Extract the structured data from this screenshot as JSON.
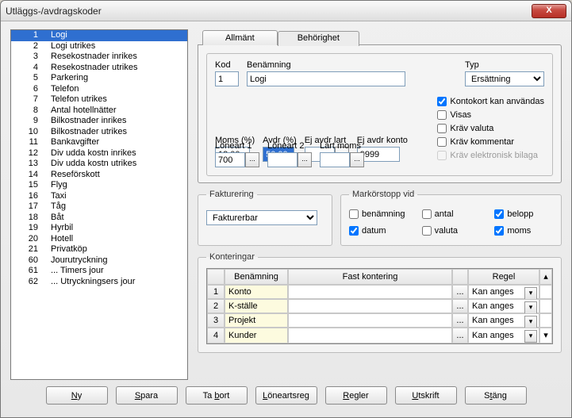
{
  "window": {
    "title": "Utläggs-/avdragskoder"
  },
  "list": {
    "selected": 0,
    "items": [
      {
        "n": "1",
        "t": "Logi"
      },
      {
        "n": "2",
        "t": "Logi utrikes"
      },
      {
        "n": "3",
        "t": "Resekostnader inrikes"
      },
      {
        "n": "4",
        "t": "Resekostnader utrikes"
      },
      {
        "n": "5",
        "t": "Parkering"
      },
      {
        "n": "6",
        "t": "Telefon"
      },
      {
        "n": "7",
        "t": "Telefon utrikes"
      },
      {
        "n": "8",
        "t": "Antal hotellnätter"
      },
      {
        "n": "9",
        "t": "Bilkostnader inrikes"
      },
      {
        "n": "10",
        "t": "Bilkostnader utrikes"
      },
      {
        "n": "11",
        "t": "Bankavgifter"
      },
      {
        "n": "12",
        "t": "Div udda kostn inrikes"
      },
      {
        "n": "13",
        "t": "Div udda kostn utrikes"
      },
      {
        "n": "14",
        "t": "Reseförskott"
      },
      {
        "n": "15",
        "t": "Flyg"
      },
      {
        "n": "16",
        "t": "Taxi"
      },
      {
        "n": "17",
        "t": "Tåg"
      },
      {
        "n": "18",
        "t": "Båt"
      },
      {
        "n": "19",
        "t": "Hyrbil"
      },
      {
        "n": "20",
        "t": "Hotell"
      },
      {
        "n": "21",
        "t": "Privatköp"
      },
      {
        "n": "60",
        "t": "Jourutryckning"
      },
      {
        "n": "61",
        "t": "... Timers jour"
      },
      {
        "n": "62",
        "t": "... Utryckningsers jour"
      }
    ]
  },
  "tabs": {
    "general": "Allmänt",
    "permissions": "Behörighet"
  },
  "general": {
    "labels": {
      "kod": "Kod",
      "benamning": "Benämning",
      "typ": "Typ",
      "moms": "Moms (%)",
      "avdr": "Avdr (%)",
      "ejavdrlart": "Ej avdr lart",
      "ejavdrkonto": "Ej avdr konto",
      "loneart1": "Löneart 1",
      "loneart2": "Löneart 2",
      "lartmoms": "Lart moms"
    },
    "values": {
      "kod": "1",
      "benamning": "Logi",
      "typ": "Ersättning",
      "moms": "12.00",
      "avdr": "50.00",
      "ejavdrlart": "",
      "ejavdrkonto": "9999",
      "loneart1": "700",
      "loneart2": "",
      "lartmoms": ""
    },
    "checks": {
      "kontokort": {
        "label": "Kontokort kan användas",
        "checked": true
      },
      "visas": {
        "label": "Visas",
        "checked": false
      },
      "kravvaluta": {
        "label": "Kräv valuta",
        "checked": false
      },
      "kravkommentar": {
        "label": "Kräv kommentar",
        "checked": false
      },
      "kravbilaga": {
        "label": "Kräv elektronisk bilaga",
        "disabled": true
      }
    }
  },
  "fakturering": {
    "legend": "Fakturering",
    "value": "Fakturerbar"
  },
  "markorstopp": {
    "legend": "Markörstopp vid",
    "items": {
      "benamning": {
        "label": "benämning",
        "checked": false
      },
      "antal": {
        "label": "antal",
        "checked": false
      },
      "belopp": {
        "label": "belopp",
        "checked": true
      },
      "datum": {
        "label": "datum",
        "checked": true
      },
      "valuta": {
        "label": "valuta",
        "checked": false
      },
      "moms": {
        "label": "moms",
        "checked": true
      }
    }
  },
  "konteringar": {
    "legend": "Konteringar",
    "headers": {
      "benamning": "Benämning",
      "fast": "Fast kontering",
      "regel": "Regel"
    },
    "rows": [
      {
        "n": "1",
        "ben": "Konto",
        "fast": "",
        "regel": "Kan anges"
      },
      {
        "n": "2",
        "ben": "K-ställe",
        "fast": "",
        "regel": "Kan anges"
      },
      {
        "n": "3",
        "ben": "Projekt",
        "fast": "",
        "regel": "Kan anges"
      },
      {
        "n": "4",
        "ben": "Kunder",
        "fast": "",
        "regel": "Kan anges"
      }
    ]
  },
  "buttons": {
    "ny": "Ny",
    "spara": "Spara",
    "tabort": "Ta bort",
    "loneartsreg": "Löneartsreg",
    "regler": "Regler",
    "utskrift": "Utskrift",
    "stang": "Stäng"
  },
  "colors": {
    "accent": "#2f6fd0"
  }
}
